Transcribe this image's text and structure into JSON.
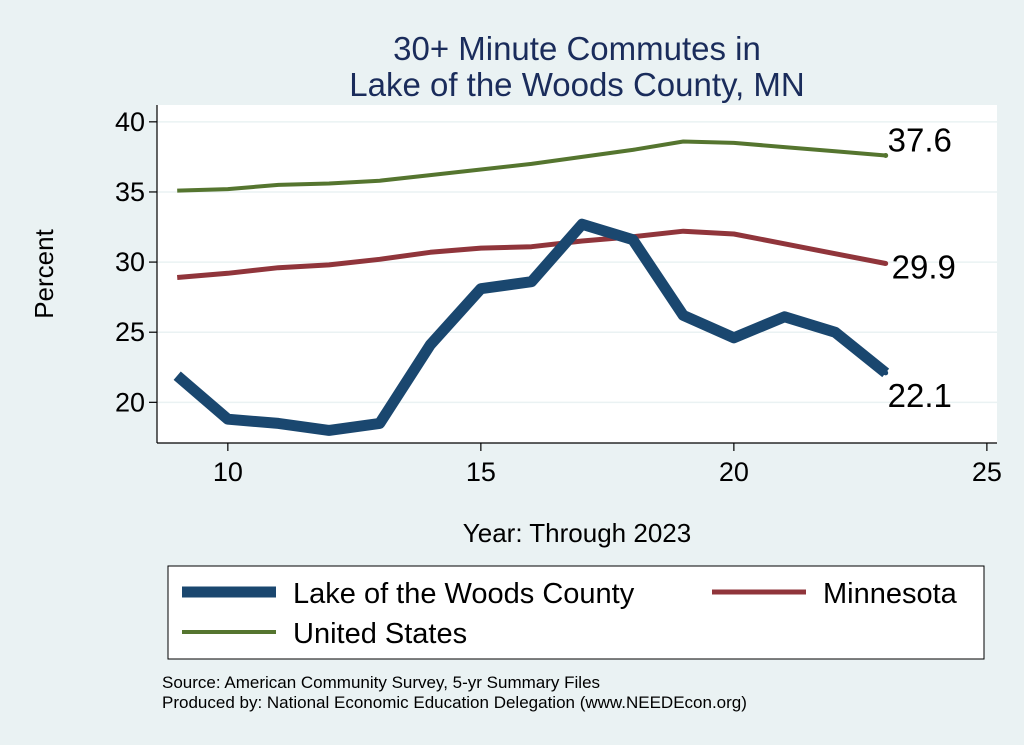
{
  "chart_data": {
    "type": "line",
    "title": [
      "30+ Minute Commutes in",
      "Lake of the Woods County, MN"
    ],
    "xlabel": "Year: Through 2023",
    "ylabel": "Percent",
    "xlim": [
      8.6,
      25.2
    ],
    "ylim": [
      17.1,
      41.2
    ],
    "xticks": [
      10,
      15,
      20,
      25
    ],
    "yticks": [
      20,
      25,
      30,
      35,
      40
    ],
    "grid": true,
    "x": [
      9,
      10,
      11,
      12,
      13,
      14,
      15,
      16,
      17,
      18,
      19,
      20,
      21,
      22,
      23
    ],
    "series": [
      {
        "name": "Lake of the Woods County",
        "color": "#1a476f",
        "values": [
          21.9,
          18.8,
          18.5,
          18.0,
          18.5,
          24.1,
          28.1,
          28.6,
          32.7,
          31.6,
          26.2,
          24.6,
          26.1,
          25.0,
          22.1
        ],
        "end_label": "22.1"
      },
      {
        "name": "Minnesota",
        "color": "#90353b",
        "values": [
          28.9,
          29.2,
          29.6,
          29.8,
          30.2,
          30.7,
          31.0,
          31.1,
          31.5,
          31.8,
          32.2,
          32.0,
          31.3,
          30.6,
          29.9
        ],
        "end_label": "29.9"
      },
      {
        "name": "United States",
        "color": "#55752f",
        "values": [
          35.1,
          35.2,
          35.5,
          35.6,
          35.8,
          36.2,
          36.6,
          37.0,
          37.5,
          38.0,
          38.6,
          38.5,
          38.2,
          37.9,
          37.6
        ],
        "end_label": "37.6"
      }
    ],
    "legend": {
      "position": "bottom",
      "items": [
        "Lake of the Woods County",
        "Minnesota",
        "United States"
      ]
    },
    "notes": [
      "Source: American Community Survey, 5-yr Summary Files",
      "Produced by: National Economic Education Delegation (www.NEEDEcon.org)"
    ]
  }
}
